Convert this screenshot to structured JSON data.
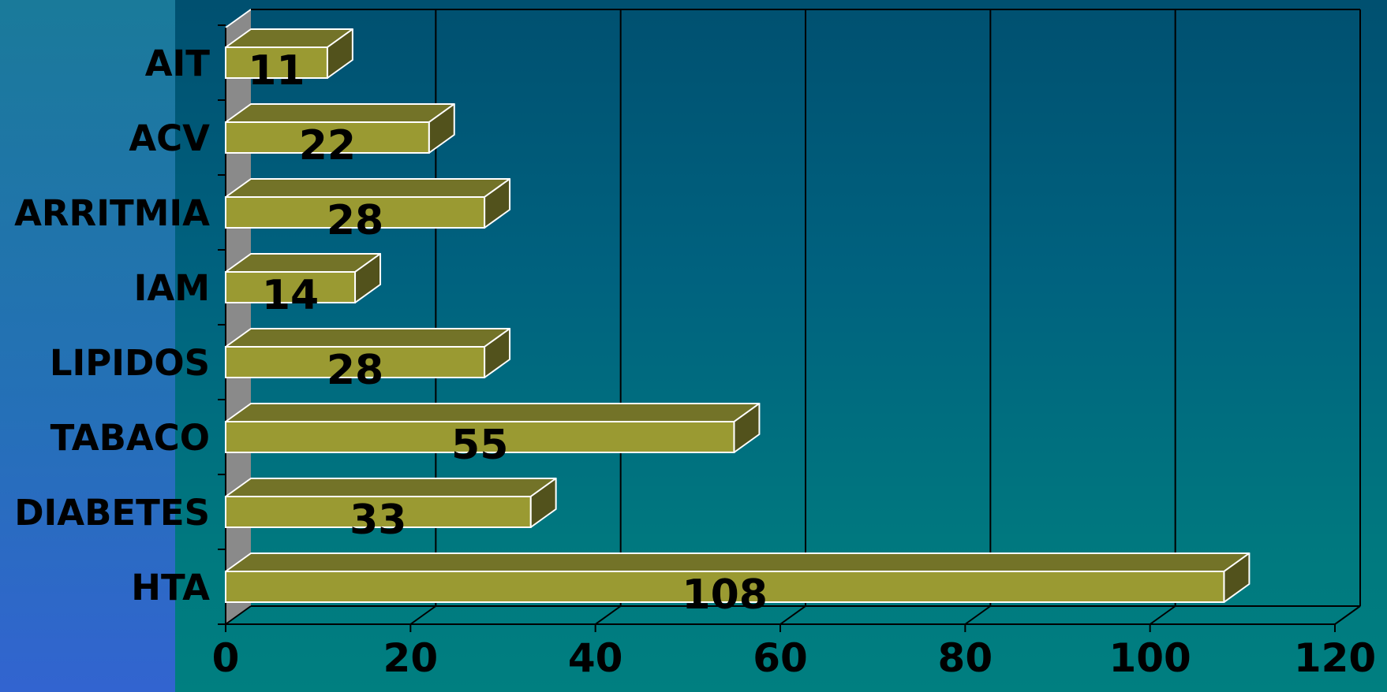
{
  "chart_data": {
    "type": "bar",
    "orientation": "horizontal",
    "style": "3d",
    "categories": [
      "HTA",
      "DIABETES",
      "TABACO",
      "LIPIDOS",
      "IAM",
      "ARRITMIA",
      "ACV",
      "AIT"
    ],
    "values": [
      108,
      33,
      55,
      28,
      14,
      28,
      22,
      11
    ],
    "data_labels": [
      "108",
      "33",
      "55",
      "28",
      "14",
      "28",
      "22",
      "11"
    ],
    "xlim": [
      0,
      120
    ],
    "x_ticks": [
      0,
      20,
      40,
      60,
      80,
      100,
      120
    ],
    "x_tick_labels": [
      "0",
      "20",
      "40",
      "60",
      "80",
      "100",
      "120"
    ],
    "grid": "vertical",
    "title": "",
    "xlabel": "",
    "ylabel": "",
    "colors": {
      "bar_front": "#9a9a32",
      "bar_top": "#737328",
      "bar_side": "#52521c",
      "bar_edge": "#ffffff",
      "wall_left": "#8a8a8a",
      "grid": "#000000"
    }
  }
}
